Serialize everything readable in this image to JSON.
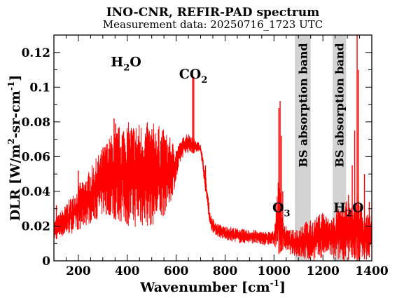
{
  "chart_data": {
    "type": "line",
    "title": "INO-CNR, REFIR-PAD spectrum",
    "subtitle": "Measurement data: 20250716_1723 UTC",
    "xlabel": "Wavenumber [cm-1]",
    "ylabel": "DLR [W/m2-sr-cm-1]",
    "xlim": [
      100,
      1400
    ],
    "ylim": [
      0,
      0.13
    ],
    "x_ticks": [
      200,
      400,
      600,
      800,
      1000,
      1200,
      1400
    ],
    "y_ticks": [
      0,
      0.02,
      0.04,
      0.06,
      0.08,
      0.1,
      0.12
    ],
    "grid": false,
    "line_color": "#ff0000",
    "band_color": "#d3d3d3",
    "shaded_bands": [
      {
        "x_range": [
          1085,
          1150
        ],
        "label": "BS absorption band"
      },
      {
        "x_range": [
          1240,
          1295
        ],
        "label": "BS absorption band"
      }
    ],
    "annotations": [
      {
        "text": "H",
        "sub": "2",
        "tail": "O",
        "x": 395,
        "y": 0.112
      },
      {
        "text": "CO",
        "sub": "2",
        "tail": "",
        "x": 670,
        "y": 0.105
      },
      {
        "text": "O",
        "sub": "3",
        "tail": "",
        "x": 1030,
        "y": 0.028
      },
      {
        "text": "H",
        "sub": "2",
        "tail": "O",
        "x": 1305,
        "y": 0.028
      }
    ],
    "series": [
      {
        "x": [
          100,
          120,
          140,
          160,
          180,
          200,
          220,
          240,
          260,
          280,
          300,
          320,
          340,
          360,
          380,
          400,
          420,
          440,
          460,
          480,
          500,
          520,
          540,
          560,
          580,
          600,
          620,
          640,
          660,
          680,
          700,
          720,
          740,
          760,
          780,
          800,
          820,
          840,
          860,
          880,
          900,
          920,
          940,
          960,
          980,
          1000,
          1020,
          1040,
          1060,
          1080,
          1100,
          1120,
          1140,
          1160,
          1180,
          1200,
          1220,
          1240,
          1260,
          1280,
          1300,
          1320,
          1340,
          1360,
          1380,
          1400
        ],
        "upper": [
          0.023,
          0.027,
          0.031,
          0.035,
          0.039,
          0.043,
          0.046,
          0.051,
          0.056,
          0.061,
          0.066,
          0.07,
          0.074,
          0.077,
          0.08,
          0.08,
          0.08,
          0.08,
          0.08,
          0.08,
          0.08,
          0.079,
          0.077,
          0.074,
          0.07,
          0.066,
          0.069,
          0.074,
          0.073,
          0.069,
          0.068,
          0.05,
          0.027,
          0.022,
          0.021,
          0.02,
          0.02,
          0.019,
          0.019,
          0.018,
          0.018,
          0.018,
          0.017,
          0.017,
          0.017,
          0.017,
          0.05,
          0.022,
          0.018,
          0.018,
          0.02,
          0.023,
          0.023,
          0.024,
          0.026,
          0.03,
          0.025,
          0.026,
          0.03,
          0.03,
          0.035,
          0.03,
          0.04,
          0.03,
          0.028,
          0.025
        ],
        "lower": [
          0.012,
          0.013,
          0.014,
          0.015,
          0.016,
          0.018,
          0.019,
          0.021,
          0.022,
          0.024,
          0.026,
          0.027,
          0.025,
          0.023,
          0.021,
          0.02,
          0.019,
          0.019,
          0.019,
          0.019,
          0.02,
          0.021,
          0.023,
          0.028,
          0.035,
          0.045,
          0.058,
          0.062,
          0.062,
          0.062,
          0.062,
          0.04,
          0.018,
          0.015,
          0.013,
          0.012,
          0.011,
          0.011,
          0.01,
          0.01,
          0.01,
          0.01,
          0.009,
          0.009,
          0.009,
          0.009,
          0.004,
          0.007,
          0.004,
          0.003,
          0.002,
          0.0,
          0.0,
          0.0,
          0.0,
          0.002,
          0.004,
          0.0,
          0.0,
          0.0,
          0.0,
          0.002,
          0.0,
          0.002,
          0.0,
          0.004
        ]
      }
    ],
    "spikes": [
      {
        "x": 110,
        "y": 0.032
      },
      {
        "x": 200,
        "y": 0.052
      },
      {
        "x": 207,
        "y": 0.045
      },
      {
        "x": 314,
        "y": 0.064
      },
      {
        "x": 327,
        "y": 0.061
      },
      {
        "x": 346,
        "y": 0.082
      },
      {
        "x": 353,
        "y": 0.079
      },
      {
        "x": 667,
        "y": 0.11
      },
      {
        "x": 672,
        "y": 0.106
      },
      {
        "x": 720,
        "y": 0.055
      },
      {
        "x": 1020,
        "y": 0.088
      },
      {
        "x": 1025,
        "y": 0.092
      },
      {
        "x": 1030,
        "y": 0.072
      },
      {
        "x": 1036,
        "y": 0.04
      },
      {
        "x": 1305,
        "y": 0.038
      },
      {
        "x": 1320,
        "y": 0.055
      },
      {
        "x": 1330,
        "y": 0.075
      },
      {
        "x": 1340,
        "y": 0.13
      },
      {
        "x": 1345,
        "y": 0.11
      },
      {
        "x": 1370,
        "y": 0.05
      },
      {
        "x": 1390,
        "y": 0.034
      }
    ]
  }
}
